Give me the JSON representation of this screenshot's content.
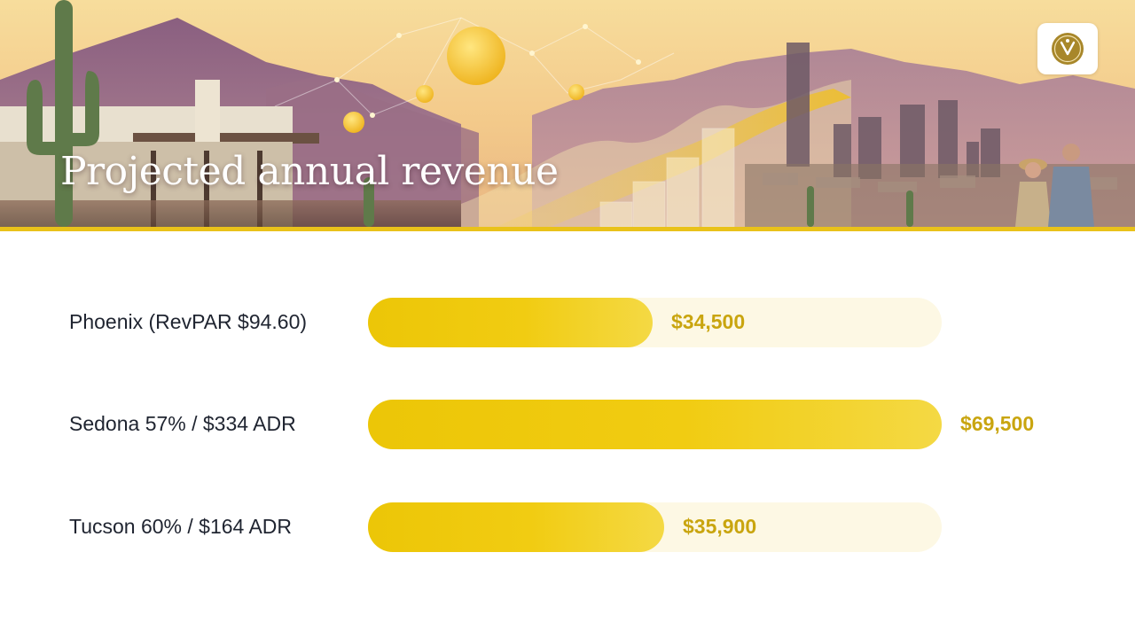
{
  "header": {
    "title": "Projected annual revenue"
  },
  "logo": {
    "icon": "monogram-seal-icon",
    "color": "#a8872a"
  },
  "colors": {
    "bar_fill": "#f0c90f",
    "bar_track": "#fdf8e4",
    "value_text": "#c9a50f",
    "label_text": "#1f2430",
    "accent_rule": "#e9c21a"
  },
  "chart_data": {
    "type": "bar",
    "orientation": "horizontal",
    "title": "Projected annual revenue",
    "categories": [
      "Phoenix (RevPAR $94.60)",
      "Sedona 57% / $334 ADR",
      "Tucson 60% / $164 ADR"
    ],
    "values": [
      34500,
      69500,
      35900
    ],
    "value_labels": [
      "$34,500",
      "$69,500",
      "$35,900"
    ],
    "xlim": [
      0,
      69500
    ],
    "grid": false,
    "legend": "none"
  }
}
